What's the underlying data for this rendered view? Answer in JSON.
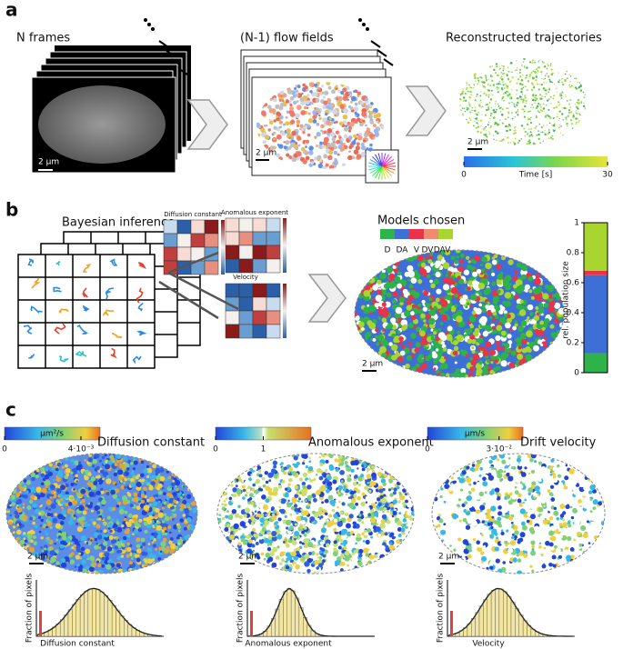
{
  "panels": {
    "a": {
      "label": "a",
      "frames_title": "N frames",
      "flow_title": "(N-1) flow fields",
      "trajectories_title": "Reconstructed trajectories",
      "scale_bars": [
        "2 μm",
        "2 μm",
        "2 μm"
      ],
      "time_colorbar": {
        "label": "Time [s]",
        "lim": [
          0,
          30
        ],
        "ticks": [
          0,
          30
        ]
      }
    },
    "b": {
      "label": "b",
      "inference_title": "Bayesian inference",
      "heatmap_titles": [
        "Diffusion constant",
        "Anomalous exponent",
        "Velocity"
      ],
      "scale_bar": "2 μm"
    },
    "c": {
      "label": "c",
      "hist_ylabel": "Fraction of pixels",
      "maps": [
        {
          "title": "Diffusion constant",
          "unit": "μm²/s",
          "lim": [
            0,
            0.005
          ],
          "ticks": [
            0,
            {
              "value": 0.004,
              "label": "4·10⁻³"
            }
          ],
          "scale_bar": "2 μm",
          "hist_xlabel": "Diffusion constant"
        },
        {
          "title": "Anomalous exponent",
          "lim": [
            0,
            2
          ],
          "ticks": [
            0,
            1
          ],
          "scale_bar": "2 μm",
          "hist_xlabel": "Anomalous exponent"
        },
        {
          "title": "Drift velocity",
          "unit": "μm/s",
          "lim": [
            0,
            0.04
          ],
          "ticks": [
            0,
            {
              "value": 0.03,
              "label": "3·10⁻²"
            }
          ],
          "scale_bar": "2 μm",
          "hist_xlabel": "Velocity"
        }
      ]
    }
  },
  "chart_data": {
    "type": "stacked-bar",
    "title": "Models chosen",
    "y_label": "rel. population size",
    "ylim": [
      0,
      1
    ],
    "yticks": [
      0,
      0.2,
      0.4,
      0.6,
      0.8,
      1
    ],
    "series": [
      {
        "name": "D",
        "color": "#2db34a",
        "values": [
          0.13
        ]
      },
      {
        "name": "DA",
        "color": "#3d6fd6",
        "values": [
          0.52
        ]
      },
      {
        "name": "V",
        "color": "#e8334a",
        "values": [
          0.03
        ]
      },
      {
        "name": "DV",
        "color": "#f08a70",
        "values": [
          0
        ]
      },
      {
        "name": "DAV",
        "color": "#a8d62e",
        "values": [
          0.32
        ]
      }
    ]
  }
}
